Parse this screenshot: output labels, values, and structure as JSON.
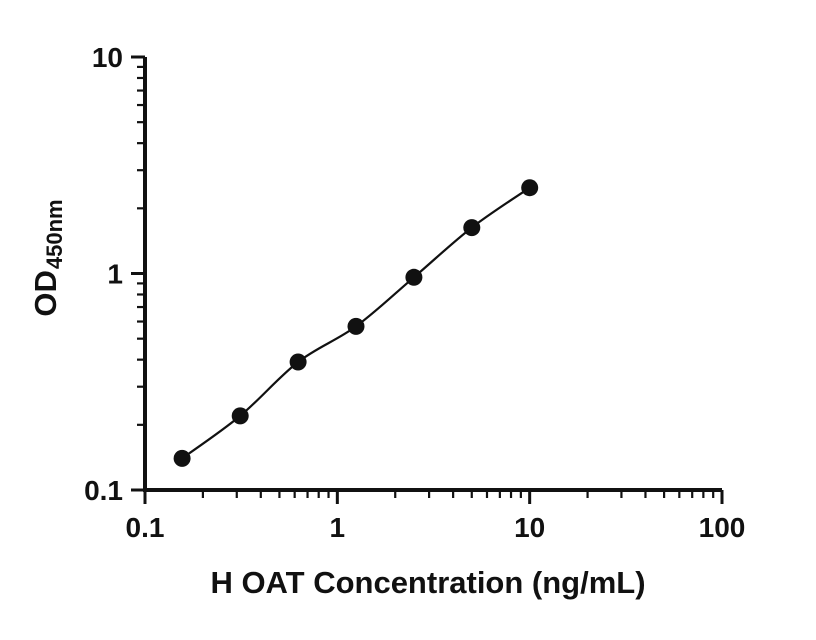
{
  "figure": {
    "background": "#ffffff"
  },
  "chart_data": {
    "type": "scatter",
    "subtype": "elisa-standard-curve",
    "title": "",
    "xlabel": "H OAT Concentration (ng/mL)",
    "ylabel": "OD",
    "ylabel_subscript": "450nm",
    "xscale": "log",
    "yscale": "log",
    "xlim": [
      0.1,
      100
    ],
    "ylim": [
      0.1,
      10
    ],
    "x_tick_labels": [
      "0.1",
      "1",
      "10",
      "100"
    ],
    "y_tick_labels": [
      "0.1",
      "1",
      "10"
    ],
    "grid": false,
    "legend": "none",
    "axis_color": "#111111",
    "line_color": "#111111",
    "marker_color": "#111111",
    "marker": "circle",
    "x": [
      0.156,
      0.3125,
      0.625,
      1.25,
      2.5,
      5,
      10
    ],
    "y": [
      0.14,
      0.22,
      0.39,
      0.57,
      0.96,
      1.63,
      2.49
    ]
  }
}
